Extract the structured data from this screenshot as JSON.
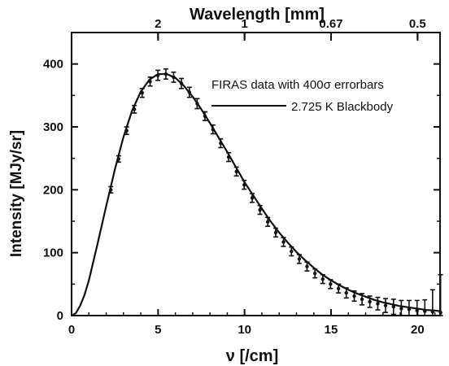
{
  "chart_data": {
    "type": "scatter",
    "title": "",
    "xlabel": "ν [/cm]",
    "ylabel": "Intensity [MJy/sr]",
    "top_xlabel": "Wavelength [mm]",
    "xlim": [
      0,
      21.3
    ],
    "ylim": [
      0,
      450
    ],
    "x_ticks": [
      "0",
      "5",
      "10",
      "15",
      "20"
    ],
    "y_ticks": [
      "0",
      "100",
      "200",
      "300",
      "400"
    ],
    "top_ticks": [
      {
        "label": "2",
        "at_nu": 5
      },
      {
        "label": "1",
        "at_nu": 10
      },
      {
        "label": "0.67",
        "at_nu": 15
      },
      {
        "label": "0.5",
        "at_nu": 20
      }
    ],
    "grid": false,
    "legend_position": "top-right",
    "legend": {
      "data_label": "FIRAS data with 400σ errorbars",
      "curve_label": "2.725 K Blackbody"
    },
    "series": [
      {
        "name": "FIRAS data with 400σ errorbars",
        "kind": "points_with_errorbars",
        "x": [
          2.27,
          2.72,
          3.18,
          3.63,
          4.08,
          4.54,
          4.99,
          5.45,
          5.9,
          6.35,
          6.81,
          7.26,
          7.71,
          8.17,
          8.62,
          9.08,
          9.53,
          9.98,
          10.44,
          10.89,
          11.34,
          11.8,
          12.25,
          12.71,
          13.16,
          13.61,
          14.07,
          14.52,
          14.97,
          15.43,
          15.88,
          16.34,
          16.79,
          17.24,
          17.7,
          18.15,
          18.61,
          19.06,
          19.51,
          19.97,
          20.42,
          20.87,
          21.33
        ],
        "y": [
          200,
          249,
          294,
          328,
          354,
          372,
          382,
          384,
          379,
          369,
          355,
          337,
          317,
          296,
          274,
          252,
          229,
          208,
          187,
          168,
          149,
          132,
          117,
          102,
          90,
          78,
          67,
          58,
          50,
          43,
          36,
          31,
          26,
          22,
          19,
          16,
          14,
          11,
          10,
          8,
          7,
          6,
          5
        ],
        "error": [
          5,
          5,
          6,
          6,
          7,
          7,
          8,
          8,
          8,
          8,
          8,
          8,
          7,
          7,
          7,
          7,
          7,
          7,
          7,
          7,
          7,
          7,
          7,
          7,
          7,
          7,
          7,
          7,
          7,
          7,
          8,
          8,
          9,
          9,
          10,
          11,
          12,
          13,
          14,
          16,
          18,
          35,
          60
        ]
      },
      {
        "name": "2.725 K Blackbody",
        "kind": "line",
        "temperature_K": 2.725,
        "x": [
          0.0,
          0.25,
          0.5,
          0.75,
          1.0,
          1.5,
          2.0,
          2.5,
          3.0,
          3.5,
          4.0,
          4.5,
          5.0,
          5.5,
          6.0,
          6.5,
          7.0,
          7.5,
          8.0,
          8.5,
          9.0,
          9.5,
          10.0,
          10.5,
          11.0,
          11.5,
          12.0,
          12.5,
          13.0,
          13.5,
          14.0,
          14.5,
          15.0,
          15.5,
          16.0,
          16.5,
          17.0,
          17.5,
          18.0,
          18.5,
          19.0,
          19.5,
          20.0,
          20.5,
          21.0,
          21.3
        ],
        "y": [
          0,
          4,
          16,
          33,
          56,
          114,
          174,
          232,
          284,
          326,
          356,
          375,
          384,
          384,
          378,
          365,
          348,
          328,
          306,
          283,
          260,
          236,
          212,
          191,
          170,
          150,
          132,
          116,
          101,
          88,
          76,
          65,
          56,
          48,
          41,
          35,
          30,
          25,
          21,
          18,
          15,
          13,
          11,
          9,
          8,
          7
        ]
      }
    ]
  }
}
